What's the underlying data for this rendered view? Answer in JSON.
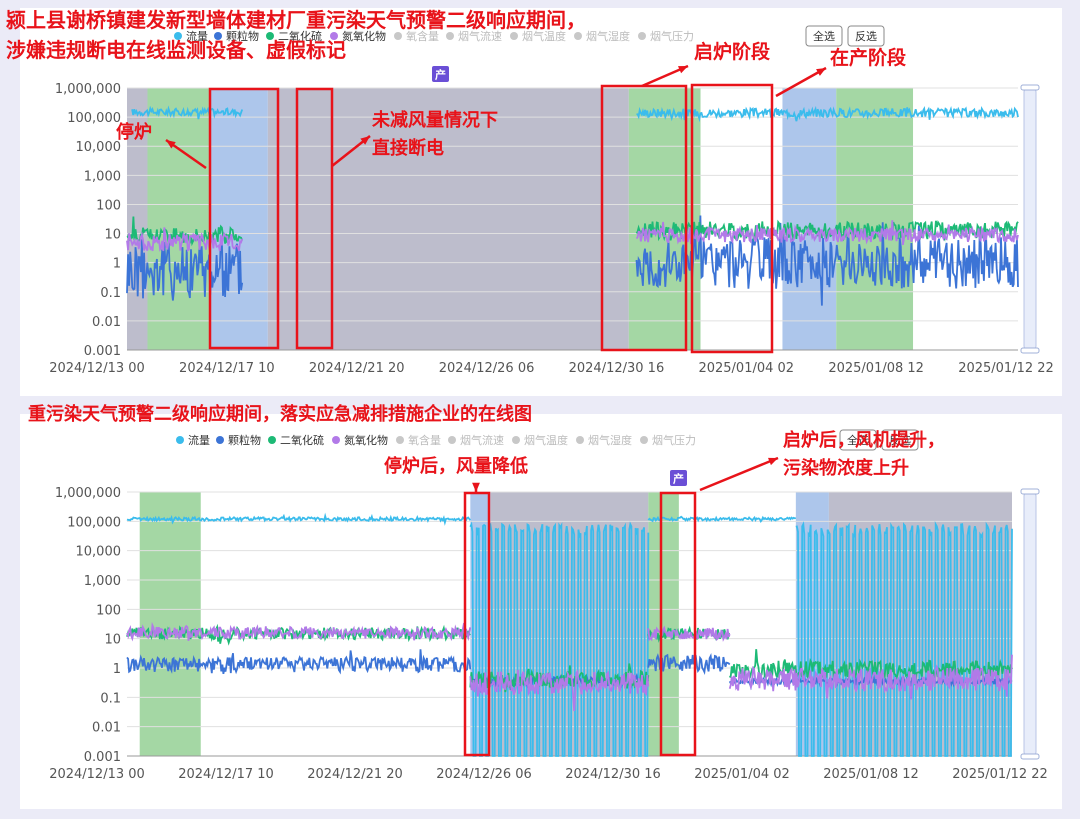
{
  "colors": {
    "flow": "#3bbcec",
    "particulate": "#3c74d6",
    "so2": "#1dba76",
    "nox": "#b27ae8",
    "inactive": "#c8c8c8",
    "red": "#e8131a",
    "shade_gray": "#b9b9c9",
    "shade_green": "#9fd59f",
    "shade_blue": "#a9c3ea"
  },
  "title_lines": [
    "颍上县谢桥镇建发新型墙体建材厂重污染天气预警二级响应期间，",
    "涉嫌违规断电在线监测设备、虚假标记"
  ],
  "title2": "重污染天气预警二级响应期间，落实应急减排措施企业的在线图",
  "legend_items": [
    {
      "label": "流量",
      "color": "#3bbcec",
      "active": true
    },
    {
      "label": "颗粒物",
      "color": "#3c74d6",
      "active": true
    },
    {
      "label": "二氧化硫",
      "color": "#1dba76",
      "active": true
    },
    {
      "label": "氮氧化物",
      "color": "#b27ae8",
      "active": true
    },
    {
      "label": "氧含量",
      "color": "#c8c8c8",
      "active": false
    },
    {
      "label": "烟气流速",
      "color": "#c8c8c8",
      "active": false
    },
    {
      "label": "烟气温度",
      "color": "#c8c8c8",
      "active": false
    },
    {
      "label": "烟气湿度",
      "color": "#c8c8c8",
      "active": false
    },
    {
      "label": "烟气压力",
      "color": "#c8c8c8",
      "active": false
    }
  ],
  "buttons": {
    "select_all": "全选",
    "invert": "反选"
  },
  "badge": "产",
  "chart_data": [
    {
      "type": "line",
      "yscale": "log",
      "ylim": [
        0.001,
        1000000
      ],
      "y_ticks": [
        "1,000,000",
        "100,000",
        "10,000",
        "1,000",
        "100",
        "10",
        "1",
        "0.1",
        "0.01",
        "0.001"
      ],
      "x_ticks": [
        "2024/12/13 00",
        "2024/12/17 10",
        "2024/12/21 20",
        "2024/12/26 06",
        "2024/12/30 16",
        "2025/01/04 02",
        "2025/01/08 12",
        "2025/01/12 22"
      ],
      "series": [
        {
          "name": "流量",
          "segments": [
            {
              "from": 0.2,
              "to": 4.5,
              "level": 150000,
              "noise": 0.12
            },
            {
              "from": 19.9,
              "to": 34.8,
              "level": 140000,
              "noise": 0.15
            }
          ]
        },
        {
          "name": "颗粒物",
          "segments": [
            {
              "from": 0,
              "to": 4.5,
              "level": 0.6,
              "noise": 1.1
            },
            {
              "from": 19.9,
              "to": 34.8,
              "level": 1.0,
              "noise": 0.9
            }
          ]
        },
        {
          "name": "二氧化硫",
          "segments": [
            {
              "from": 0,
              "to": 4.5,
              "level": 9,
              "noise": 0.3
            },
            {
              "from": 19.9,
              "to": 34.8,
              "level": 13,
              "noise": 0.3
            }
          ]
        },
        {
          "name": "氮氧化物",
          "segments": [
            {
              "from": 0,
              "to": 4.5,
              "level": 5,
              "noise": 0.3
            },
            {
              "from": 19.9,
              "to": 34.8,
              "level": 9,
              "noise": 0.25
            }
          ]
        }
      ],
      "bands": [
        {
          "from": 0,
          "to": 0.8,
          "kind": "gray"
        },
        {
          "from": 0.8,
          "to": 3.2,
          "kind": "green"
        },
        {
          "from": 3.2,
          "to": 5.5,
          "kind": "blue"
        },
        {
          "from": 5.5,
          "to": 19.6,
          "kind": "gray"
        },
        {
          "from": 19.6,
          "to": 22.4,
          "kind": "green"
        },
        {
          "from": 25.6,
          "to": 27.7,
          "kind": "blue"
        },
        {
          "from": 27.7,
          "to": 30.7,
          "kind": "green"
        }
      ],
      "annotations": {
        "stop": "停炉",
        "cut_power": [
          "未减风量情况下",
          "直接断电"
        ],
        "startup": "启炉阶段",
        "producing": "在产阶段"
      }
    },
    {
      "type": "line",
      "yscale": "log",
      "ylim": [
        0.001,
        1000000
      ],
      "y_ticks": [
        "1,000,000",
        "100,000",
        "10,000",
        "1,000",
        "100",
        "10",
        "1",
        "0.1",
        "0.01",
        "0.001"
      ],
      "x_ticks": [
        "2024/12/13 00",
        "2024/12/17 10",
        "2024/12/21 20",
        "2024/12/26 06",
        "2024/12/30 16",
        "2025/01/04 02",
        "2025/01/08 12",
        "2025/01/12 22"
      ],
      "series": [
        {
          "name": "流量",
          "segments": [
            {
              "from": 0,
              "to": 13.5,
              "level": 120000,
              "noise": 0.06
            },
            {
              "from": 13.5,
              "to": 20.5,
              "level": 1000,
              "noise": 5,
              "oscillate": true
            },
            {
              "from": 20.5,
              "to": 26.3,
              "level": 120000,
              "noise": 0.05
            },
            {
              "from": 26.3,
              "to": 34.8,
              "level": 1000,
              "noise": 5,
              "oscillate": true
            }
          ]
        },
        {
          "name": "颗粒物",
          "segments": [
            {
              "from": 0,
              "to": 13.5,
              "level": 1.3,
              "noise": 0.25
            },
            {
              "from": 13.5,
              "to": 20.5,
              "level": 0.35,
              "noise": 0.15
            },
            {
              "from": 20.5,
              "to": 23.7,
              "level": 1.4,
              "noise": 0.3
            },
            {
              "from": 23.7,
              "to": 34.8,
              "level": 0.35,
              "noise": 0.1
            }
          ]
        },
        {
          "name": "二氧化硫",
          "segments": [
            {
              "from": 0,
              "to": 13.5,
              "level": 15,
              "noise": 0.2
            },
            {
              "from": 13.5,
              "to": 20.5,
              "level": 0.4,
              "noise": 0.3
            },
            {
              "from": 20.5,
              "to": 23.7,
              "level": 15,
              "noise": 0.2
            },
            {
              "from": 23.7,
              "to": 34.8,
              "level": 0.9,
              "noise": 0.3
            }
          ]
        },
        {
          "name": "氮氧化物",
          "segments": [
            {
              "from": 0,
              "to": 13.5,
              "level": 16,
              "noise": 0.2
            },
            {
              "from": 13.5,
              "to": 20.5,
              "level": 0.3,
              "noise": 0.4
            },
            {
              "from": 20.5,
              "to": 23.7,
              "level": 15,
              "noise": 0.2
            },
            {
              "from": 23.7,
              "to": 34.8,
              "level": 0.4,
              "noise": 0.4
            }
          ]
        }
      ],
      "bands": [
        {
          "from": 0.5,
          "to": 2.9,
          "kind": "green"
        },
        {
          "from": 13.5,
          "to": 14.3,
          "kind": "blue"
        },
        {
          "from": 14.3,
          "to": 20.5,
          "kind": "gray"
        },
        {
          "from": 20.5,
          "to": 21.7,
          "kind": "green"
        },
        {
          "from": 26.3,
          "to": 27.6,
          "kind": "blue"
        },
        {
          "from": 27.6,
          "to": 34.8,
          "kind": "gray"
        }
      ],
      "annotations": {
        "stop_fan": "停炉后，风量降低",
        "start_fan": [
          "启炉后，风机提升，",
          "污染物浓度上升"
        ]
      }
    }
  ]
}
